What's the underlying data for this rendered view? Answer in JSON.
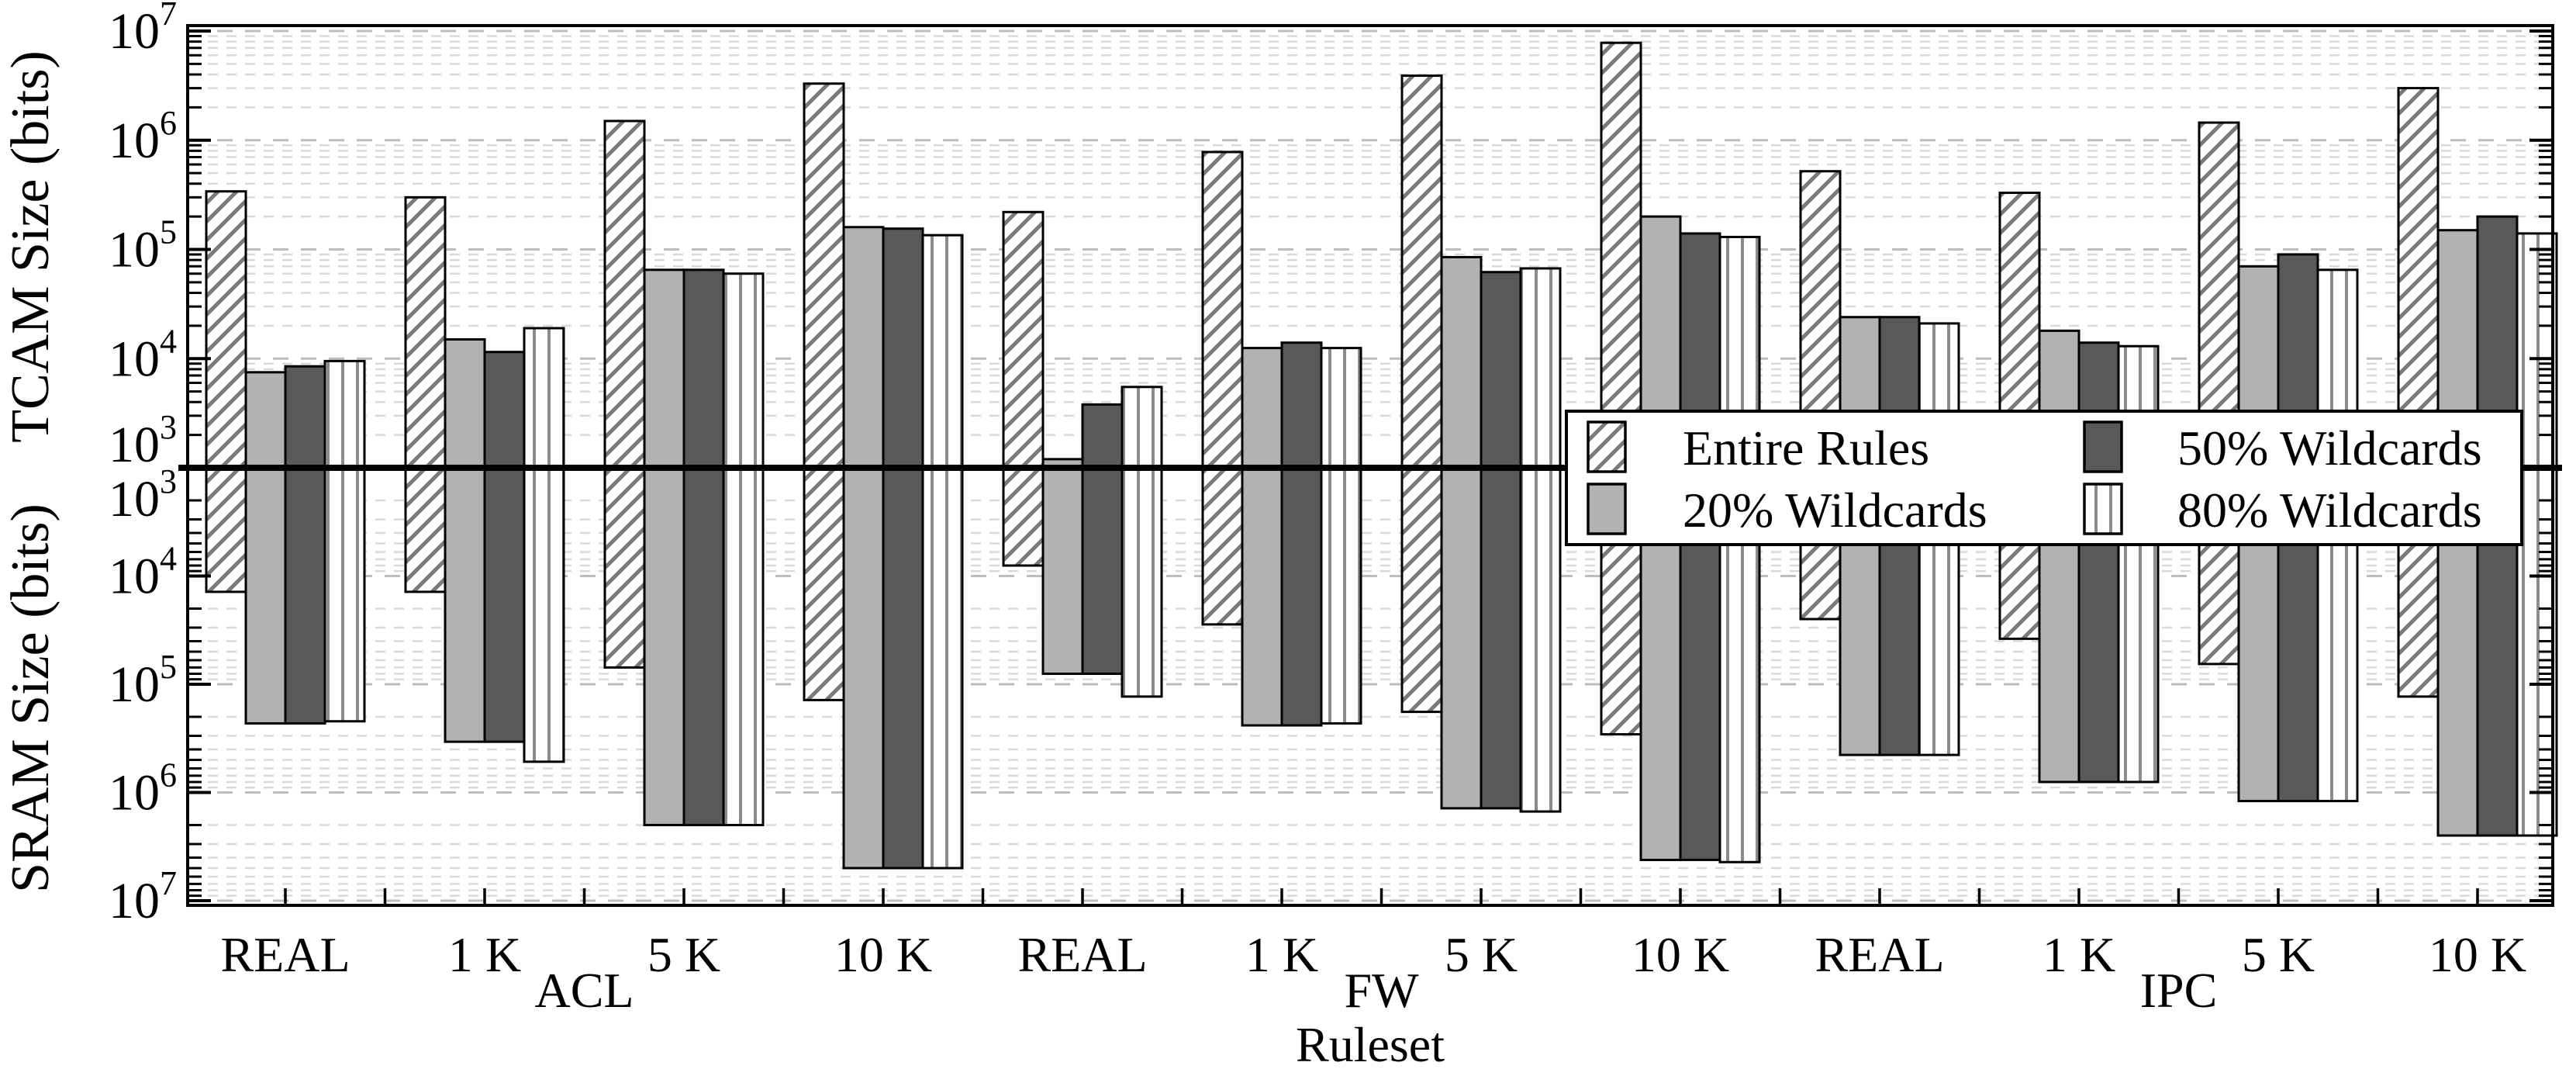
{
  "figure_title": "",
  "colors": {
    "background": "#ffffff",
    "axis": "#000000",
    "grid_major": "#bdbdbd",
    "grid_minor": "#d9d9d9",
    "hatch_line": "#7a7a7a",
    "stripe_line": "#8c8c8c",
    "fill_20pct": "#b2b2b2",
    "fill_50pct": "#595959",
    "bar_border": "#000000",
    "legend_bg": "#ffffff"
  },
  "chart_data": {
    "type": "bar",
    "subtype": "mirrored-dual-log-bar",
    "title": "",
    "xlabel": "Ruleset",
    "ylabel_top": "TCAM Size (bits)",
    "ylabel_bottom": "SRAM Size (bits)",
    "y_scale": "log10",
    "y_range_top": [
      1000,
      10000000
    ],
    "y_range_bottom": [
      1000,
      10000000
    ],
    "y_tick_exponents_top": [
      7,
      6,
      5,
      4,
      3
    ],
    "y_tick_exponents_bottom": [
      3,
      4,
      5,
      6,
      7
    ],
    "y_tick_base": "10",
    "grid": "dashed horizontal log major+minor",
    "sections": [
      {
        "label": "ACL",
        "span": [
          0,
          3
        ]
      },
      {
        "label": "FW",
        "span": [
          4,
          7
        ]
      },
      {
        "label": "IPC",
        "span": [
          8,
          11
        ]
      }
    ],
    "categories": [
      "REAL",
      "1 K",
      "5 K",
      "10 K",
      "REAL",
      "1 K",
      "5 K",
      "10 K",
      "REAL",
      "1 K",
      "5 K",
      "10 K"
    ],
    "series": [
      {
        "name": "Entire Rules",
        "pattern": "diagonal-hatch",
        "tcam_bits": [
          340000,
          300000,
          1500000,
          3300000,
          220000,
          780000,
          3900000,
          7800000,
          520000,
          330000,
          1450000,
          3000000
        ],
        "sram_bits": [
          14000,
          14000,
          70000,
          140000,
          8000,
          28000,
          180000,
          290000,
          25000,
          38000,
          65000,
          130000
        ]
      },
      {
        "name": "20% Wildcards",
        "pattern": "solid-light-gray",
        "tcam_bits": [
          7500,
          15000,
          65000,
          160000,
          1200,
          12500,
          85000,
          200000,
          24000,
          18000,
          70000,
          150000
        ],
        "sram_bits": [
          230000,
          340000,
          2000000,
          5000000,
          80000,
          240000,
          1400000,
          4200000,
          450000,
          800000,
          1200000,
          2500000
        ]
      },
      {
        "name": "50% Wildcards",
        "pattern": "solid-dark-gray",
        "tcam_bits": [
          8500,
          11500,
          65000,
          155000,
          3800,
          14000,
          62000,
          140000,
          24000,
          14000,
          90000,
          200000
        ],
        "sram_bits": [
          230000,
          340000,
          2000000,
          5000000,
          80000,
          240000,
          1400000,
          4200000,
          450000,
          800000,
          1200000,
          2500000
        ]
      },
      {
        "name": "80% Wildcards",
        "pattern": "vertical-stripes",
        "tcam_bits": [
          9500,
          19000,
          60000,
          135000,
          5500,
          12500,
          67000,
          130000,
          21000,
          13000,
          65000,
          140000
        ],
        "sram_bits": [
          220000,
          520000,
          2000000,
          5000000,
          130000,
          230000,
          1500000,
          4400000,
          450000,
          800000,
          1200000,
          2500000
        ]
      }
    ],
    "legend": {
      "position": "middle-right-overlay",
      "rows": [
        [
          "Entire Rules",
          "50% Wildcards"
        ],
        [
          "20% Wildcards",
          "80% Wildcards"
        ]
      ],
      "entries": [
        "Entire Rules",
        "20% Wildcards",
        "50% Wildcards",
        "80% Wildcards"
      ]
    }
  }
}
